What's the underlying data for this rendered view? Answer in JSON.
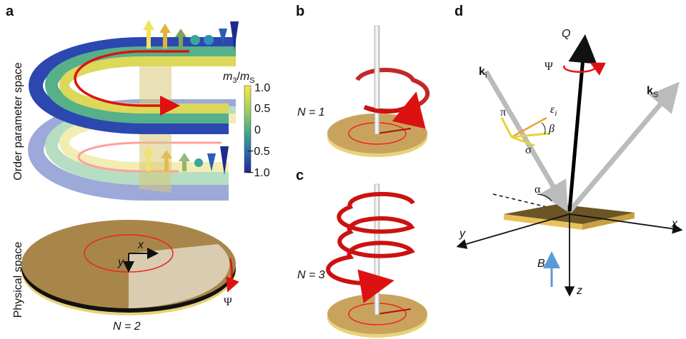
{
  "panels": {
    "a": {
      "label": "a",
      "y_axis_top": "Order parameter space",
      "y_axis_bottom": "Physical space",
      "colorbar": {
        "label_m1": "m",
        "label_sub1": "3",
        "label_slash": "/",
        "label_m2": "m",
        "label_sub2": "S",
        "ticks": [
          "1.0",
          "0.5",
          "0",
          "−0.5",
          "−1.0"
        ]
      },
      "x": "x",
      "y": "y",
      "psi": "Ψ",
      "n": "N = 2"
    },
    "b": {
      "label": "b",
      "n": "N = 1"
    },
    "c": {
      "label": "c",
      "n": "N = 3"
    },
    "d": {
      "label": "d",
      "q": "Q",
      "psi": "Ψ",
      "k_i": {
        "k": "k",
        "sub": "i"
      },
      "k_s": {
        "k": "k",
        "sub": "S"
      },
      "pi": "π",
      "epsilon": {
        "symbol": "ε",
        "sub": "i"
      },
      "beta": "β",
      "sigma": "σ",
      "alpha": "α",
      "x": "x",
      "y": "y",
      "z": "z",
      "b": "B"
    }
  }
}
